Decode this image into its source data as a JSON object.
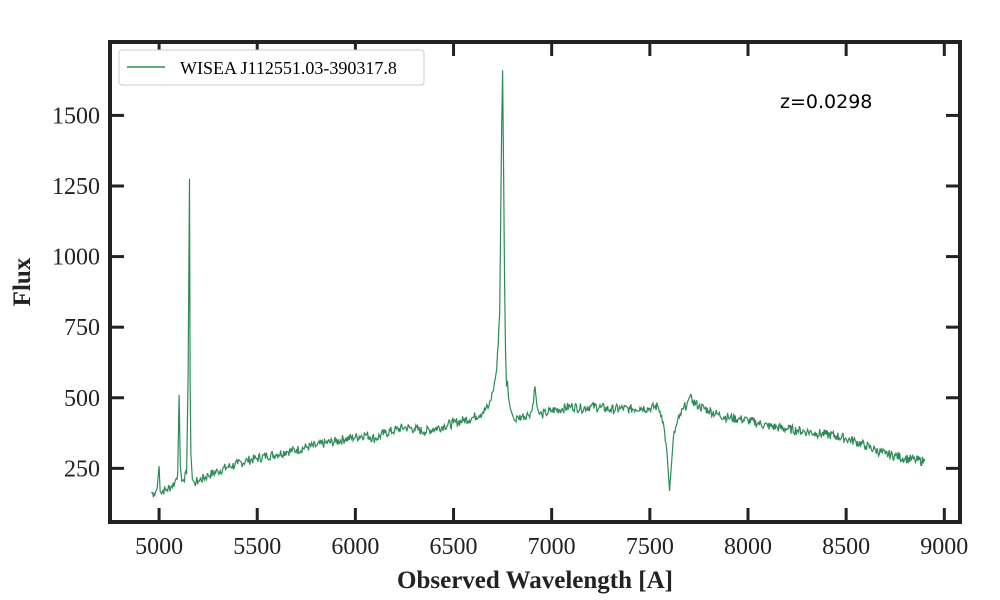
{
  "chart_data": {
    "type": "line",
    "title": "",
    "xlabel": "Observed Wavelength [A]",
    "ylabel": "Flux",
    "xlim": [
      4750,
      9080
    ],
    "ylim": [
      60,
      1760
    ],
    "xticks": [
      5000,
      5500,
      6000,
      6500,
      7000,
      7500,
      8000,
      8500,
      9000
    ],
    "yticks": [
      250,
      500,
      750,
      1000,
      1250,
      1500
    ],
    "grid": false,
    "legend_position": "top-left",
    "annotation": "z=0.0298",
    "series": [
      {
        "name": "WISEA J112551.03-390317.8",
        "color": "#2e8b57",
        "x": [
          4960,
          4975,
          4990,
          5000,
          5005,
          5012,
          5020,
          5040,
          5060,
          5080,
          5095,
          5102,
          5108,
          5115,
          5125,
          5140,
          5148,
          5155,
          5158,
          5162,
          5170,
          5180,
          5200,
          5250,
          5300,
          5350,
          5400,
          5450,
          5500,
          5550,
          5600,
          5650,
          5700,
          5750,
          5800,
          5850,
          5900,
          5950,
          6000,
          6050,
          6100,
          6150,
          6200,
          6250,
          6300,
          6350,
          6400,
          6450,
          6500,
          6550,
          6600,
          6650,
          6680,
          6700,
          6720,
          6735,
          6745,
          6750,
          6755,
          6760,
          6765,
          6770,
          6775,
          6780,
          6790,
          6800,
          6810,
          6830,
          6850,
          6880,
          6900,
          6915,
          6925,
          6935,
          6950,
          6970,
          7000,
          7050,
          7100,
          7150,
          7200,
          7250,
          7300,
          7350,
          7400,
          7450,
          7500,
          7540,
          7560,
          7575,
          7590,
          7600,
          7610,
          7620,
          7635,
          7650,
          7670,
          7690,
          7700,
          7720,
          7750,
          7800,
          7850,
          7900,
          7950,
          8000,
          8050,
          8100,
          8150,
          8200,
          8250,
          8300,
          8350,
          8400,
          8450,
          8500,
          8550,
          8600,
          8650,
          8700,
          8750,
          8800,
          8850,
          8900
        ],
        "y": [
          165,
          160,
          178,
          258,
          170,
          160,
          172,
          175,
          185,
          200,
          230,
          510,
          260,
          205,
          210,
          230,
          570,
          1275,
          560,
          300,
          210,
          200,
          205,
          225,
          240,
          255,
          265,
          278,
          285,
          295,
          300,
          310,
          315,
          325,
          330,
          340,
          345,
          355,
          360,
          370,
          355,
          375,
          385,
          395,
          390,
          380,
          390,
          400,
          410,
          420,
          430,
          450,
          470,
          520,
          600,
          800,
          1440,
          1660,
          1300,
          900,
          650,
          540,
          560,
          500,
          460,
          440,
          420,
          430,
          435,
          440,
          455,
          540,
          470,
          445,
          440,
          445,
          455,
          460,
          470,
          462,
          470,
          466,
          458,
          462,
          460,
          465,
          462,
          470,
          440,
          380,
          280,
          170,
          260,
          360,
          400,
          430,
          460,
          480,
          500,
          488,
          470,
          455,
          440,
          430,
          425,
          420,
          410,
          400,
          395,
          390,
          385,
          380,
          375,
          370,
          365,
          355,
          345,
          330,
          315,
          300,
          295,
          285,
          280,
          275
        ]
      }
    ]
  }
}
